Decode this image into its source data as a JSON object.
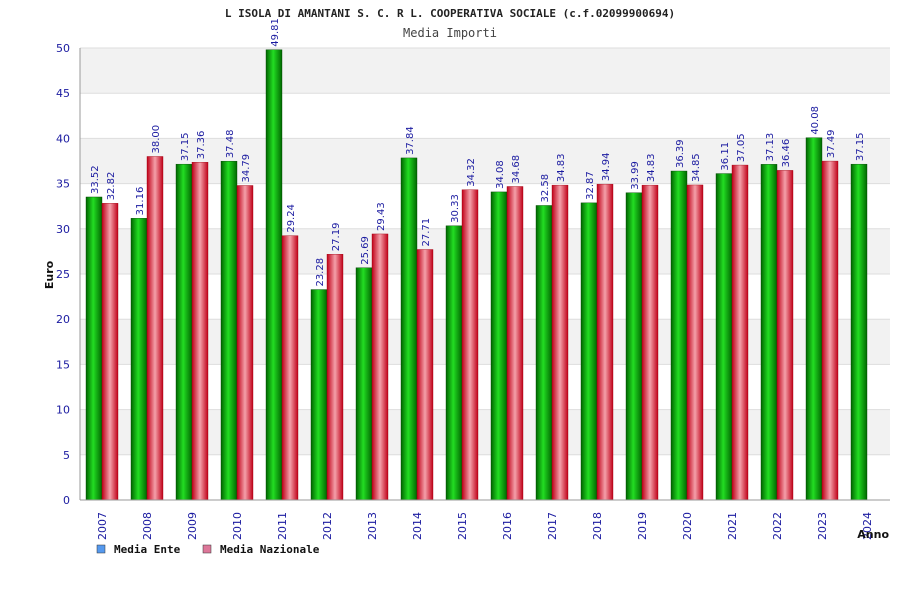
{
  "chart_data": {
    "type": "bar",
    "title": "L ISOLA DI AMANTANI S. C. R L. COOPERATIVA SOCIALE (c.f.02099900694)",
    "subtitle": "Media Importi",
    "xlabel": "Anno",
    "ylabel": "Euro",
    "ylim": [
      0,
      50
    ],
    "yticks": [
      0,
      5,
      10,
      15,
      20,
      25,
      30,
      35,
      40,
      45,
      50
    ],
    "grid": true,
    "legend_position": "bottom-left",
    "categories": [
      "2007",
      "2008",
      "2009",
      "2010",
      "2011",
      "2012",
      "2013",
      "2014",
      "2015",
      "2016",
      "2017",
      "2018",
      "2019",
      "2020",
      "2021",
      "2022",
      "2023",
      "2024"
    ],
    "series": [
      {
        "name": "Media Ente",
        "color": "#00b000",
        "legend_color": "#5599ee",
        "values": [
          33.52,
          31.16,
          37.15,
          37.48,
          49.81,
          23.28,
          25.69,
          37.84,
          30.33,
          34.08,
          32.58,
          32.87,
          33.99,
          36.39,
          36.11,
          37.13,
          40.08,
          37.15
        ],
        "labels": [
          "33.52",
          "31.16",
          "37.15",
          "37.48",
          "49.81",
          "23.28",
          "25.69",
          "37.84",
          "30.33",
          "34.08",
          "32.58",
          "32.87",
          "33.99",
          "36.39",
          "36.11",
          "37.13",
          "40.08",
          "37.15"
        ]
      },
      {
        "name": "Media Nazionale",
        "color": "#e8283c",
        "legend_color": "#dd7799",
        "values": [
          32.82,
          38.0,
          37.36,
          34.79,
          29.24,
          27.19,
          29.43,
          27.71,
          34.32,
          34.68,
          34.83,
          34.94,
          34.83,
          34.85,
          37.05,
          36.46,
          37.49,
          null
        ],
        "labels": [
          "32.82",
          "38.00",
          "37.36",
          "34.79",
          "29.24",
          "27.19",
          "29.43",
          "27.71",
          "34.32",
          "34.68",
          "34.83",
          "34.94",
          "34.83",
          "34.85",
          "37.05",
          "36.46",
          "37.49",
          ""
        ]
      }
    ]
  }
}
